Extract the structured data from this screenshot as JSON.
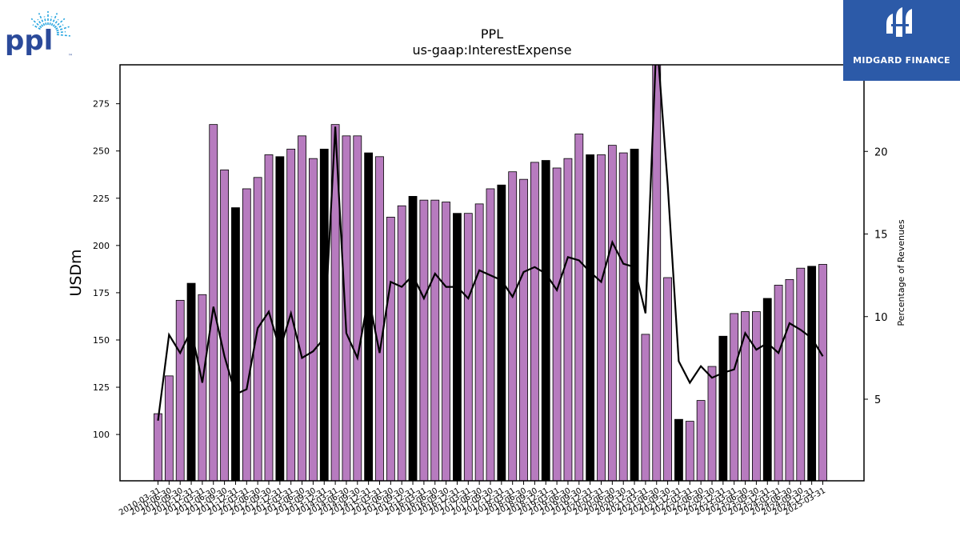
{
  "logo": {
    "text": "ppl",
    "trademark": "™",
    "text_color": "#2b4a9a",
    "ray_color": "#29a6e0"
  },
  "brand": {
    "name": "MIDGARD FINANCE",
    "background": "#2c5aa8",
    "text_color": "#ffffff"
  },
  "chart_data": {
    "type": "bar",
    "title": "PPL",
    "subtitle": "us-gaap:InterestExpense",
    "ylabel": "USDm",
    "y2label": "Percentage of Revenues",
    "ylim": [
      75,
      295
    ],
    "y2lim": [
      0,
      25
    ],
    "yticks": [
      100,
      125,
      150,
      175,
      200,
      225,
      250,
      275
    ],
    "y2ticks": [
      5,
      10,
      15,
      20
    ],
    "grid": false,
    "colors": {
      "quarter_bar": "#b77bbf",
      "annual_bar": "#000000",
      "bar_edge": "#000000",
      "line": "#000000"
    },
    "categories": [
      "2010-03-31",
      "2010-06-30",
      "2010-09-30",
      "2010-12-31",
      "2011-03-31",
      "2011-06-30",
      "2011-09-30",
      "2011-12-31",
      "2012-03-31",
      "2012-06-30",
      "2012-09-30",
      "2012-12-31",
      "2013-03-31",
      "2013-06-30",
      "2013-09-30",
      "2013-12-31",
      "2014-03-31",
      "2014-06-30",
      "2014-09-30",
      "2014-12-31",
      "2015-03-31",
      "2015-06-30",
      "2015-09-30",
      "2015-12-31",
      "2016-03-31",
      "2016-06-30",
      "2016-09-30",
      "2016-12-31",
      "2017-03-31",
      "2017-06-30",
      "2017-09-30",
      "2017-12-31",
      "2018-03-31",
      "2018-06-30",
      "2018-09-30",
      "2018-12-31",
      "2019-03-31",
      "2019-06-30",
      "2019-09-30",
      "2019-12-31",
      "2020-03-31",
      "2020-06-30",
      "2020-09-30",
      "2020-12-31",
      "2021-03-31",
      "2021-06-30",
      "2021-09-30",
      "2021-12-31",
      "2022-03-31",
      "2022-06-30",
      "2022-09-30",
      "2022-12-31",
      "2023-03-31",
      "2023-06-30",
      "2023-09-30",
      "2023-12-31",
      "2024-03-31",
      "2024-06-30",
      "2024-09-30",
      "2024-12-31",
      "2025-03-31"
    ],
    "series": [
      {
        "kind": "bar",
        "values": [
          111,
          131,
          171,
          180,
          174,
          264,
          240,
          220,
          230,
          236,
          248,
          247,
          251,
          258,
          246,
          251,
          264,
          258,
          258,
          249,
          247,
          215,
          221,
          226,
          224,
          224,
          223,
          217,
          217,
          222,
          230,
          232,
          239,
          235,
          244,
          245,
          241,
          246,
          259,
          248,
          248,
          253,
          249,
          251,
          153,
          300,
          183,
          108,
          107,
          118,
          136,
          152,
          164,
          165,
          165,
          172,
          179,
          182,
          188,
          189,
          190
        ],
        "annual": [
          false,
          false,
          false,
          true,
          false,
          false,
          false,
          true,
          false,
          false,
          false,
          true,
          false,
          false,
          false,
          true,
          false,
          false,
          false,
          true,
          false,
          false,
          false,
          true,
          false,
          false,
          false,
          true,
          false,
          false,
          false,
          true,
          false,
          false,
          false,
          true,
          false,
          false,
          false,
          true,
          false,
          false,
          false,
          true,
          false,
          false,
          false,
          true,
          false,
          false,
          false,
          true,
          false,
          false,
          false,
          true,
          false,
          false,
          false,
          true,
          false
        ]
      },
      {
        "kind": "line",
        "axis": "right",
        "values": [
          3.7,
          8.9,
          7.8,
          9.2,
          6.0,
          10.6,
          7.6,
          5.3,
          5.6,
          9.3,
          10.3,
          8.0,
          10.2,
          7.5,
          7.9,
          8.7,
          21.5,
          9.0,
          7.5,
          11.2,
          7.8,
          12.1,
          11.8,
          12.5,
          11.1,
          12.6,
          11.8,
          11.8,
          11.1,
          12.8,
          12.5,
          12.2,
          11.2,
          12.7,
          13.0,
          12.6,
          11.6,
          13.6,
          13.4,
          12.7,
          12.1,
          14.5,
          13.2,
          13.0,
          10.2,
          27.0,
          18.0,
          7.3,
          6.0,
          7.0,
          6.3,
          6.6,
          6.8,
          9.0,
          8.0,
          8.4,
          7.8,
          9.6,
          9.2,
          8.7,
          7.6
        ]
      }
    ]
  }
}
